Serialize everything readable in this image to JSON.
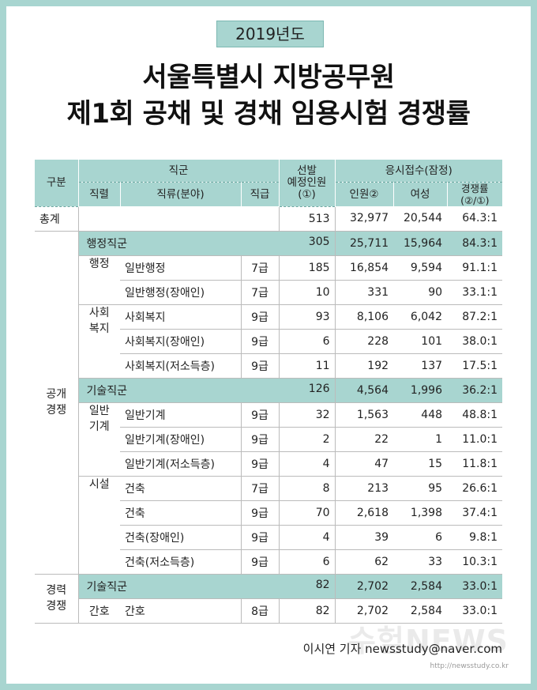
{
  "year": "2019년도",
  "title_line1": "서울특별시 지방공무원",
  "title_line2": "제1회 공채 및 경채 임용시험 경쟁률",
  "headers": {
    "gubun": "구분",
    "jikgun": "직군",
    "jikryeol": "직렬",
    "jikryu": "직류(분야)",
    "jikgeup": "직급",
    "seonbal_1": "선발",
    "seonbal_2": "예정인원",
    "seonbal_3": "(①)",
    "eungsi": "응시접수(잠정)",
    "inwon": "인원②",
    "yeoseong": "여성",
    "ratio_1": "경쟁률",
    "ratio_2": "(②/①)"
  },
  "total": {
    "label": "총계",
    "planned": "513",
    "applicants": "32,977",
    "women": "20,544",
    "ratio": "64.3:1"
  },
  "sections": {
    "open": "공개\n경쟁",
    "career": "경력\n경쟁"
  },
  "groups": {
    "admin": {
      "name": "행정직군",
      "planned": "305",
      "applicants": "25,711",
      "women": "15,964",
      "ratio": "84.3:1"
    },
    "tech1": {
      "name": "기술직군",
      "planned": "126",
      "applicants": "4,564",
      "women": "1,996",
      "ratio": "36.2:1"
    },
    "tech2": {
      "name": "기술직군",
      "planned": "82",
      "applicants": "2,702",
      "women": "2,584",
      "ratio": "33.0:1"
    }
  },
  "series_names": {
    "haengjeong": "행정",
    "sahoebokji": "사회\n복지",
    "ilbangigye": "일반\n기계",
    "siseol": "시설",
    "ganho": "간호"
  },
  "rows": [
    {
      "field": "일반행정",
      "grade": "7급",
      "planned": "185",
      "applicants": "16,854",
      "women": "9,594",
      "ratio": "91.1:1"
    },
    {
      "field": "일반행정(장애인)",
      "grade": "7급",
      "planned": "10",
      "applicants": "331",
      "women": "90",
      "ratio": "33.1:1"
    },
    {
      "field": "사회복지",
      "grade": "9급",
      "planned": "93",
      "applicants": "8,106",
      "women": "6,042",
      "ratio": "87.2:1"
    },
    {
      "field": "사회복지(장애인)",
      "grade": "9급",
      "planned": "6",
      "applicants": "228",
      "women": "101",
      "ratio": "38.0:1"
    },
    {
      "field": "사회복지(저소득층)",
      "grade": "9급",
      "planned": "11",
      "applicants": "192",
      "women": "137",
      "ratio": "17.5:1"
    },
    {
      "field": "일반기계",
      "grade": "9급",
      "planned": "32",
      "applicants": "1,563",
      "women": "448",
      "ratio": "48.8:1"
    },
    {
      "field": "일반기계(장애인)",
      "grade": "9급",
      "planned": "2",
      "applicants": "22",
      "women": "1",
      "ratio": "11.0:1"
    },
    {
      "field": "일반기계(저소득층)",
      "grade": "9급",
      "planned": "4",
      "applicants": "47",
      "women": "15",
      "ratio": "11.8:1"
    },
    {
      "field": "건축",
      "grade": "7급",
      "planned": "8",
      "applicants": "213",
      "women": "95",
      "ratio": "26.6:1"
    },
    {
      "field": "건축",
      "grade": "9급",
      "planned": "70",
      "applicants": "2,618",
      "women": "1,398",
      "ratio": "37.4:1"
    },
    {
      "field": "건축(장애인)",
      "grade": "9급",
      "planned": "4",
      "applicants": "39",
      "women": "6",
      "ratio": "9.8:1"
    },
    {
      "field": "건축(저소득층)",
      "grade": "9급",
      "planned": "6",
      "applicants": "62",
      "women": "33",
      "ratio": "10.3:1"
    },
    {
      "field": "간호",
      "grade": "8급",
      "planned": "82",
      "applicants": "2,702",
      "women": "2,584",
      "ratio": "33.0:1"
    }
  ],
  "credit": "이시연 기자  newsstudy@naver.com",
  "watermark": "수험NEWS",
  "watermark_url": "http://newsstudy.co.kr",
  "colors": {
    "accent": "#a8d5d0",
    "border": "#bbbbbb",
    "text": "#222222"
  }
}
